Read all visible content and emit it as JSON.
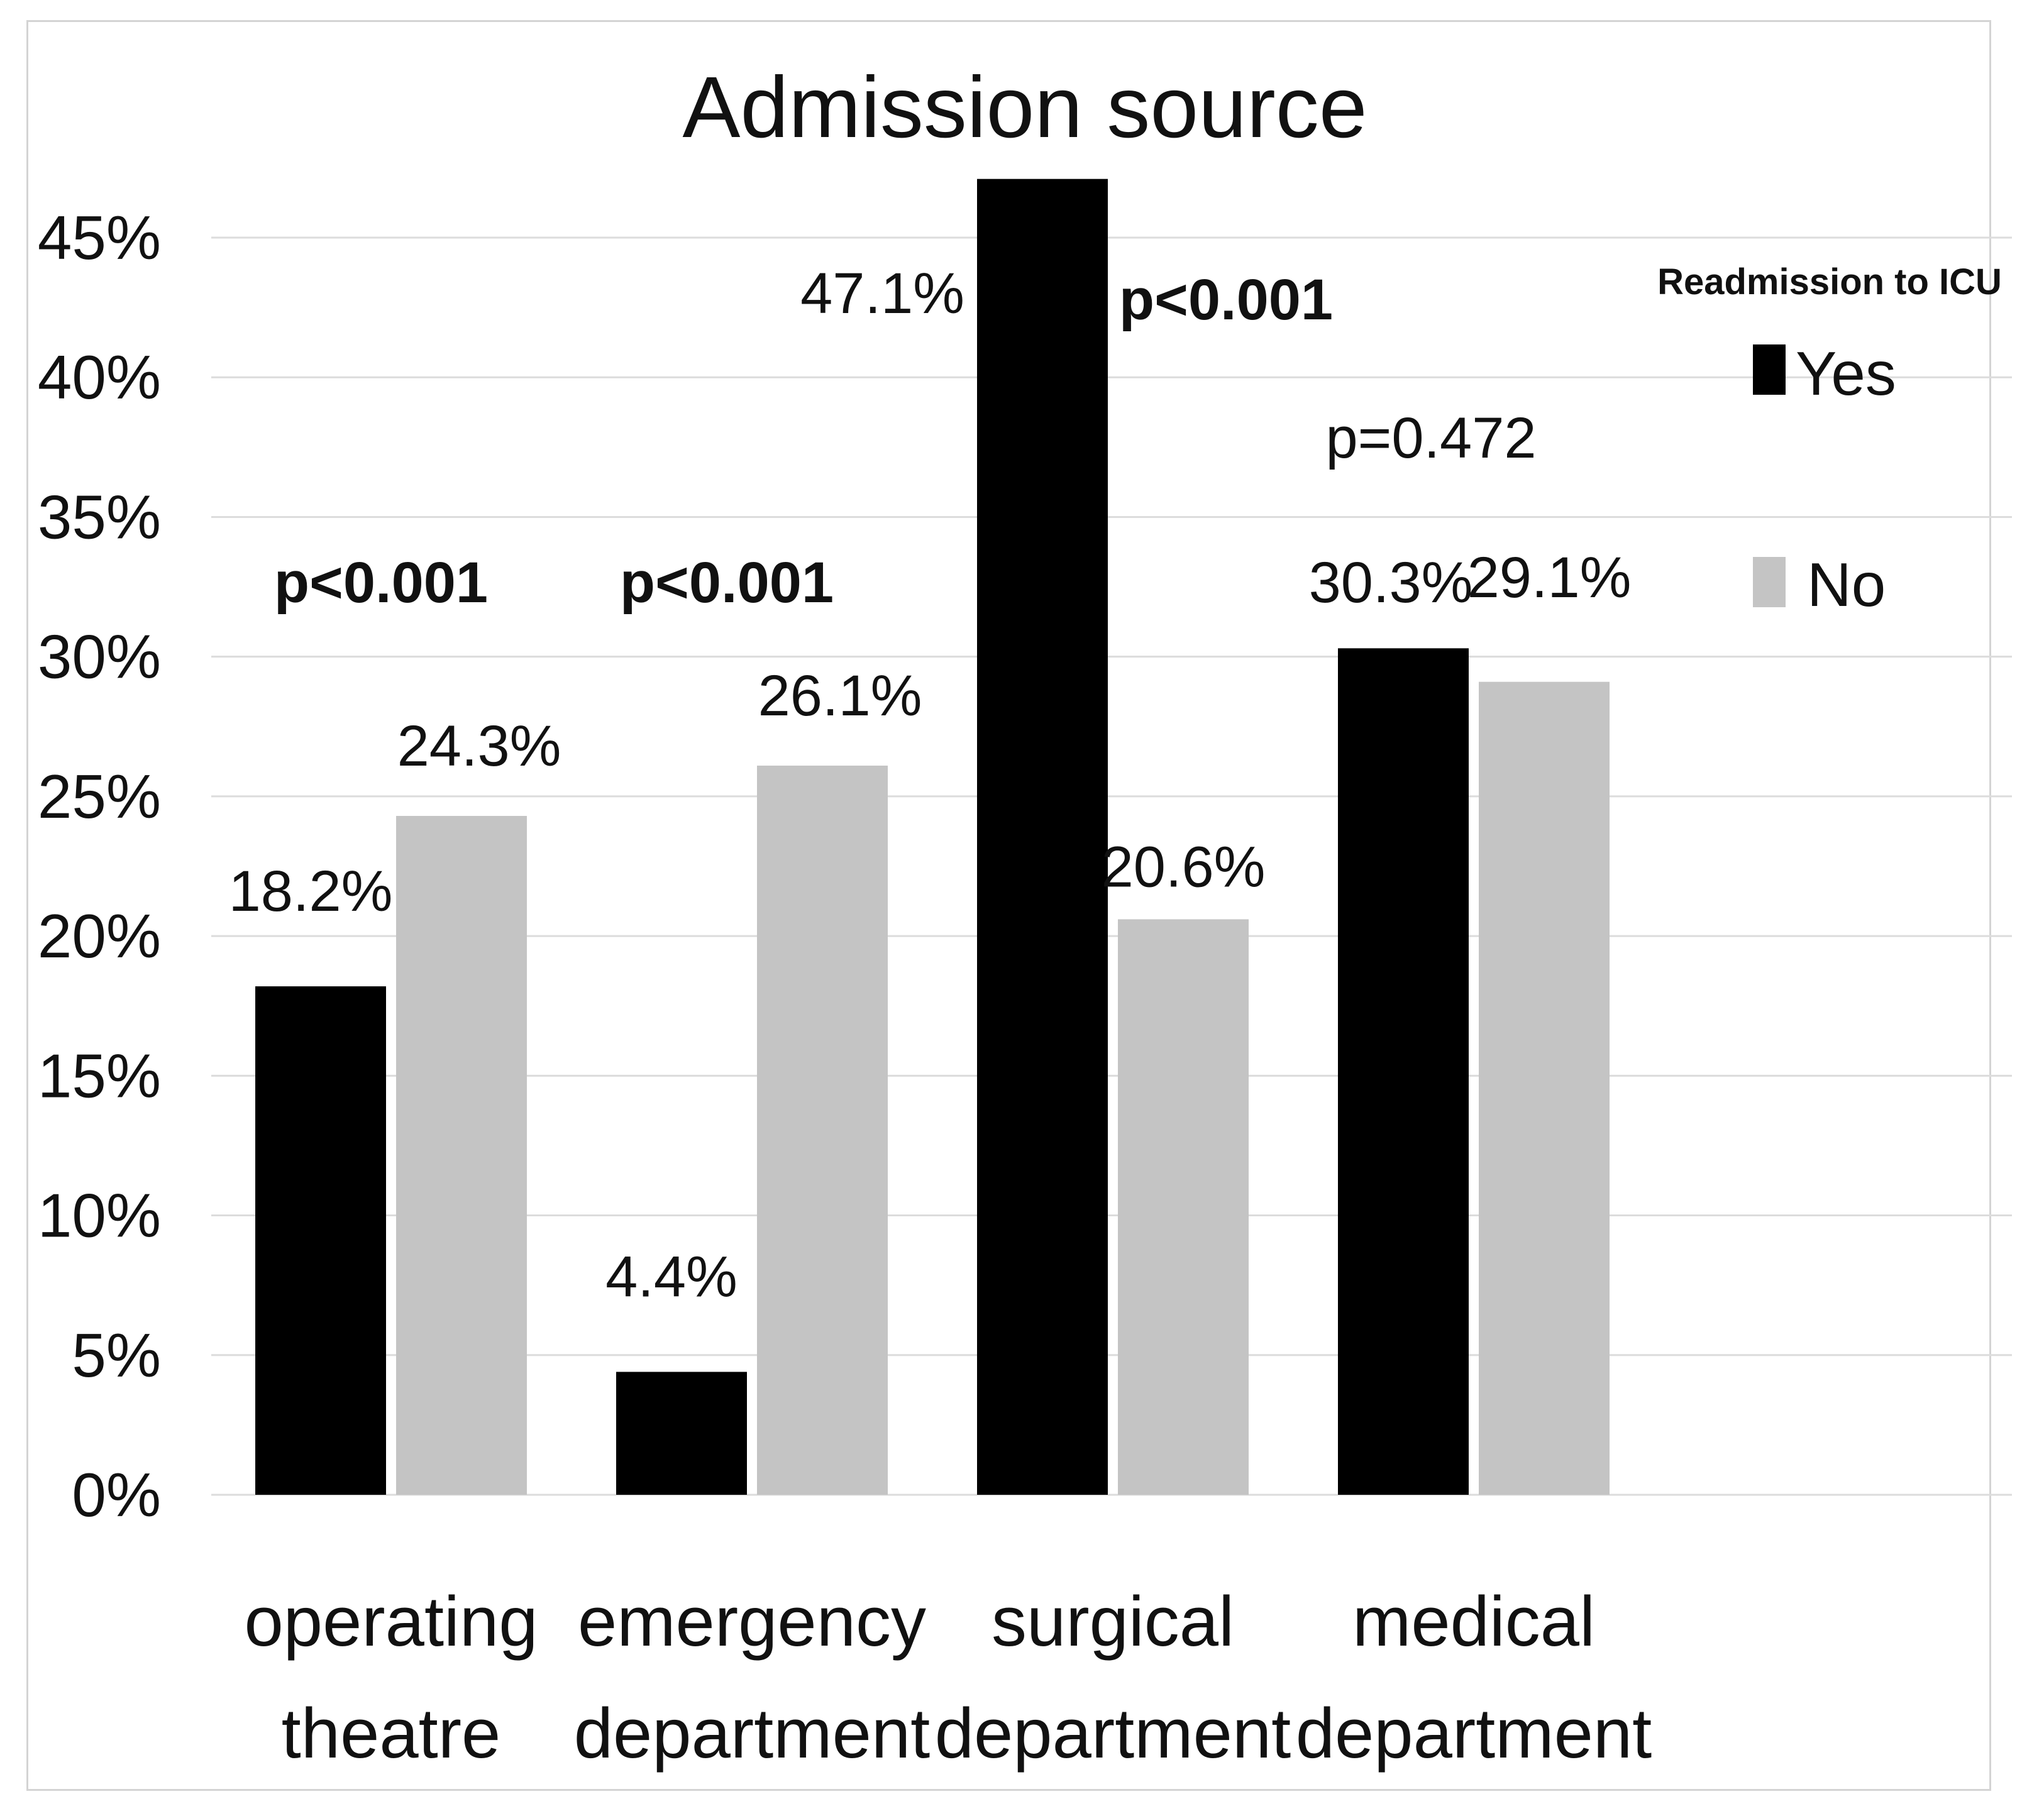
{
  "chart_data": {
    "type": "bar",
    "title": "Admission source",
    "xlabel": "",
    "ylabel": "",
    "ylim": [
      0,
      45
    ],
    "y_ticks": [
      "0%",
      "5%",
      "10%",
      "15%",
      "20%",
      "25%",
      "30%",
      "35%",
      "40%",
      "45%"
    ],
    "y_tick_values": [
      0,
      5,
      10,
      15,
      20,
      25,
      30,
      35,
      40,
      45
    ],
    "grid": true,
    "categories": [
      [
        "operating",
        "theatre"
      ],
      [
        "emergency",
        "department"
      ],
      [
        "surgical",
        "department"
      ],
      [
        "medical",
        "department"
      ]
    ],
    "series": [
      {
        "name": "Yes",
        "color": "#000000",
        "values": [
          18.2,
          4.4,
          47.1,
          30.3
        ],
        "labels": [
          "18.2%",
          "4.4%",
          "47.1%",
          "30.3%"
        ]
      },
      {
        "name": "No",
        "color": "#c4c4c4",
        "values": [
          24.3,
          26.1,
          20.6,
          29.1
        ],
        "labels": [
          "24.3%",
          "26.1%",
          "20.6%",
          "29.1%"
        ]
      }
    ],
    "p_values": [
      {
        "text": "p<0.001",
        "bold": true
      },
      {
        "text": "p<0.001",
        "bold": true
      },
      {
        "text": "p<0.001",
        "bold": true
      },
      {
        "text": "p=0.472",
        "bold": false
      }
    ],
    "legend": {
      "title": "Readmission to ICU",
      "position": "top-right",
      "items": [
        "Yes",
        "No"
      ]
    }
  }
}
